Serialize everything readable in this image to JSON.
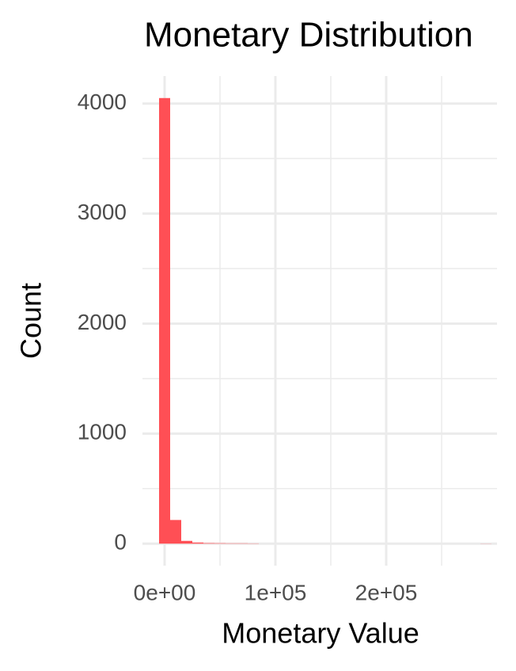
{
  "chart_data": {
    "type": "histogram",
    "title": "Monetary Distribution",
    "x_label": "Monetary Value",
    "y_label": "Count",
    "bins": [
      -5000,
      5000,
      15000,
      25000,
      35000,
      45000,
      55000,
      65000,
      75000,
      85000,
      95000,
      105000,
      115000,
      125000,
      135000,
      145000,
      155000,
      165000,
      175000,
      185000,
      195000,
      205000,
      215000,
      225000,
      235000,
      245000,
      255000,
      265000,
      275000,
      285000,
      295000
    ],
    "values": [
      4050,
      215,
      25,
      10,
      5,
      4,
      3,
      3,
      2,
      0,
      0,
      0,
      0,
      0,
      0,
      0,
      0,
      0,
      0,
      0,
      0,
      0,
      0,
      0,
      0,
      0,
      0,
      0,
      0,
      1
    ],
    "color": "#ff4f55",
    "xlim": [
      -20000,
      300000
    ],
    "xticks": [
      {
        "value": 0,
        "label": "0e+00"
      },
      {
        "value": 100000,
        "label": "1e+05"
      },
      {
        "value": 200000,
        "label": "2e+05"
      }
    ],
    "xminor": [
      50000,
      150000,
      250000
    ],
    "ylim": [
      -200,
      4250
    ],
    "yticks": [
      0,
      1000,
      2000,
      3000,
      4000
    ],
    "yminor": [
      500,
      1500,
      2500,
      3500
    ],
    "grid": true
  }
}
